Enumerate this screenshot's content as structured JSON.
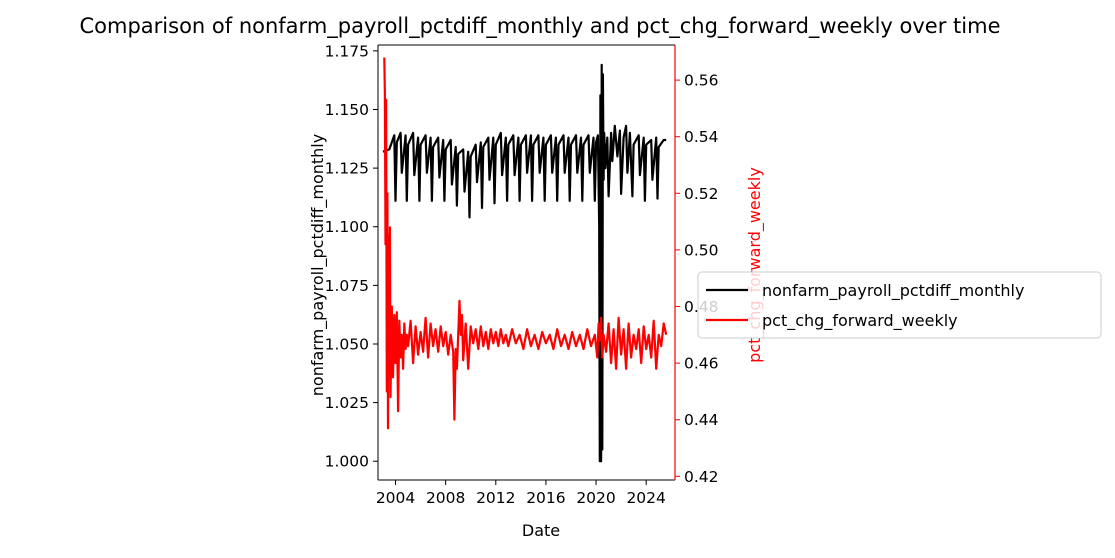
{
  "chart_data": {
    "type": "line",
    "title": "Comparison of nonfarm_payroll_pctdiff_monthly and pct_chg_forward_weekly over time",
    "xlabel": "Date",
    "x_tick_labels": [
      "2004",
      "2008",
      "2012",
      "2016",
      "2020",
      "2024"
    ],
    "x_tick_years": [
      2004,
      2008,
      2012,
      2016,
      2020,
      2024
    ],
    "xlim": [
      2002.6,
      2026.3
    ],
    "left_axis": {
      "label": "nonfarm_payroll_pctdiff_monthly",
      "ylim": [
        0.992,
        1.1775
      ],
      "ticks": [
        1.0,
        1.025,
        1.05,
        1.075,
        1.1,
        1.125,
        1.15,
        1.175
      ],
      "tick_labels": [
        "1.000",
        "1.025",
        "1.050",
        "1.075",
        "1.100",
        "1.125",
        "1.150",
        "1.175"
      ],
      "color": "#000000"
    },
    "right_axis": {
      "label": "pct_chg_forward_weekly",
      "ylim": [
        0.4187,
        0.5724
      ],
      "ticks": [
        0.42,
        0.44,
        0.46,
        0.48,
        0.5,
        0.52,
        0.54,
        0.56
      ],
      "tick_labels": [
        "0.42",
        "0.44",
        "0.46",
        "0.48",
        "0.50",
        "0.52",
        "0.54",
        "0.56"
      ],
      "color": "#ff0000"
    },
    "legend_position": "center-right, outside plot",
    "grid": false,
    "series": [
      {
        "name": "nonfarm_payroll_pctdiff_monthly",
        "axis": "left",
        "color": "#000000",
        "x": [
          2003.0,
          2003.5,
          2003.9,
          2004.0,
          2004.1,
          2004.4,
          2004.5,
          2004.8,
          2004.9,
          2005.0,
          2005.4,
          2005.5,
          2005.8,
          2005.9,
          2006.0,
          2006.4,
          2006.5,
          2006.8,
          2006.9,
          2007.0,
          2007.4,
          2007.5,
          2007.8,
          2007.9,
          2008.0,
          2008.4,
          2008.5,
          2008.8,
          2008.9,
          2009.0,
          2009.4,
          2009.5,
          2009.8,
          2009.9,
          2010.0,
          2010.4,
          2010.5,
          2010.8,
          2010.9,
          2011.0,
          2011.4,
          2011.5,
          2011.8,
          2011.9,
          2012.0,
          2012.4,
          2012.5,
          2012.8,
          2012.9,
          2013.0,
          2013.4,
          2013.5,
          2013.8,
          2013.9,
          2014.0,
          2014.4,
          2014.5,
          2014.8,
          2014.9,
          2015.0,
          2015.4,
          2015.5,
          2015.8,
          2015.9,
          2016.0,
          2016.4,
          2016.5,
          2016.8,
          2016.9,
          2017.0,
          2017.4,
          2017.5,
          2017.8,
          2017.9,
          2018.0,
          2018.4,
          2018.5,
          2018.8,
          2018.9,
          2019.0,
          2019.4,
          2019.5,
          2019.8,
          2019.9,
          2020.0,
          2020.15,
          2020.25,
          2020.3,
          2020.35,
          2020.4,
          2020.45,
          2020.5,
          2020.55,
          2020.6,
          2020.65,
          2020.75,
          2020.9,
          2021.0,
          2021.2,
          2021.3,
          2021.5,
          2021.7,
          2021.9,
          2022.0,
          2022.2,
          2022.4,
          2022.5,
          2022.7,
          2022.9,
          2023.0,
          2023.4,
          2023.5,
          2023.8,
          2023.9,
          2024.0,
          2024.4,
          2024.5,
          2024.8,
          2024.9,
          2025.0,
          2025.4,
          2025.6
        ],
        "y": [
          1.132,
          1.133,
          1.139,
          1.111,
          1.136,
          1.14,
          1.123,
          1.139,
          1.111,
          1.135,
          1.14,
          1.122,
          1.138,
          1.111,
          1.135,
          1.139,
          1.123,
          1.138,
          1.111,
          1.134,
          1.138,
          1.121,
          1.137,
          1.111,
          1.133,
          1.137,
          1.118,
          1.134,
          1.109,
          1.131,
          1.133,
          1.115,
          1.132,
          1.104,
          1.13,
          1.135,
          1.119,
          1.136,
          1.108,
          1.134,
          1.138,
          1.12,
          1.138,
          1.11,
          1.135,
          1.14,
          1.122,
          1.138,
          1.111,
          1.135,
          1.139,
          1.122,
          1.138,
          1.111,
          1.135,
          1.139,
          1.123,
          1.139,
          1.111,
          1.135,
          1.139,
          1.123,
          1.138,
          1.111,
          1.135,
          1.139,
          1.123,
          1.138,
          1.111,
          1.135,
          1.139,
          1.123,
          1.138,
          1.111,
          1.135,
          1.139,
          1.123,
          1.138,
          1.111,
          1.135,
          1.139,
          1.123,
          1.138,
          1.111,
          1.136,
          1.139,
          1.1,
          1.0,
          1.156,
          1.0,
          1.169,
          1.005,
          1.165,
          1.12,
          1.14,
          1.125,
          1.138,
          1.113,
          1.14,
          1.128,
          1.143,
          1.13,
          1.141,
          1.114,
          1.138,
          1.143,
          1.123,
          1.14,
          1.113,
          1.135,
          1.139,
          1.122,
          1.138,
          1.111,
          1.135,
          1.137,
          1.12,
          1.138,
          1.112,
          1.134,
          1.137,
          1.137
        ]
      },
      {
        "name": "pct_chg_forward_weekly",
        "axis": "right",
        "color": "#ff0000",
        "x": [
          2003.1,
          2003.15,
          2003.2,
          2003.25,
          2003.3,
          2003.35,
          2003.4,
          2003.45,
          2003.5,
          2003.55,
          2003.6,
          2003.7,
          2003.8,
          2003.9,
          2004.0,
          2004.1,
          2004.2,
          2004.3,
          2004.4,
          2004.5,
          2004.6,
          2004.7,
          2004.8,
          2004.9,
          2005.0,
          2005.2,
          2005.4,
          2005.6,
          2005.8,
          2006.0,
          2006.2,
          2006.4,
          2006.6,
          2006.8,
          2007.0,
          2007.2,
          2007.4,
          2007.6,
          2007.8,
          2008.0,
          2008.2,
          2008.4,
          2008.6,
          2008.7,
          2008.8,
          2008.9,
          2009.0,
          2009.1,
          2009.2,
          2009.3,
          2009.4,
          2009.6,
          2009.8,
          2010.0,
          2010.2,
          2010.4,
          2010.6,
          2010.8,
          2011.0,
          2011.2,
          2011.4,
          2011.6,
          2011.8,
          2012.0,
          2012.2,
          2012.4,
          2012.6,
          2012.8,
          2013.0,
          2013.3,
          2013.6,
          2013.9,
          2014.2,
          2014.5,
          2014.8,
          2015.1,
          2015.4,
          2015.7,
          2016.0,
          2016.3,
          2016.6,
          2016.9,
          2017.2,
          2017.5,
          2017.8,
          2018.1,
          2018.4,
          2018.7,
          2019.0,
          2019.3,
          2019.6,
          2019.9,
          2020.1,
          2020.2,
          2020.3,
          2020.4,
          2020.5,
          2020.6,
          2020.8,
          2021.0,
          2021.2,
          2021.4,
          2021.6,
          2021.8,
          2022.0,
          2022.2,
          2022.4,
          2022.6,
          2022.8,
          2023.0,
          2023.2,
          2023.4,
          2023.6,
          2023.8,
          2024.0,
          2024.2,
          2024.4,
          2024.6,
          2024.8,
          2025.0,
          2025.2,
          2025.4,
          2025.6
        ],
        "y": [
          0.568,
          0.555,
          0.502,
          0.553,
          0.45,
          0.52,
          0.437,
          0.505,
          0.462,
          0.508,
          0.448,
          0.48,
          0.455,
          0.477,
          0.46,
          0.478,
          0.443,
          0.475,
          0.462,
          0.47,
          0.458,
          0.474,
          0.465,
          0.47,
          0.466,
          0.475,
          0.46,
          0.473,
          0.463,
          0.471,
          0.464,
          0.476,
          0.462,
          0.474,
          0.466,
          0.472,
          0.464,
          0.473,
          0.466,
          0.471,
          0.463,
          0.47,
          0.464,
          0.44,
          0.465,
          0.458,
          0.47,
          0.482,
          0.47,
          0.477,
          0.461,
          0.474,
          0.458,
          0.473,
          0.467,
          0.472,
          0.465,
          0.473,
          0.466,
          0.471,
          0.465,
          0.472,
          0.467,
          0.471,
          0.466,
          0.472,
          0.467,
          0.47,
          0.466,
          0.472,
          0.467,
          0.47,
          0.465,
          0.472,
          0.466,
          0.47,
          0.465,
          0.471,
          0.467,
          0.47,
          0.465,
          0.472,
          0.466,
          0.47,
          0.465,
          0.471,
          0.466,
          0.47,
          0.465,
          0.472,
          0.466,
          0.47,
          0.462,
          0.474,
          0.468,
          0.476,
          0.462,
          0.47,
          0.464,
          0.474,
          0.46,
          0.472,
          0.458,
          0.476,
          0.463,
          0.472,
          0.458,
          0.474,
          0.462,
          0.47,
          0.465,
          0.472,
          0.46,
          0.473,
          0.465,
          0.47,
          0.462,
          0.475,
          0.458,
          0.47,
          0.466,
          0.474,
          0.47
        ]
      }
    ]
  }
}
